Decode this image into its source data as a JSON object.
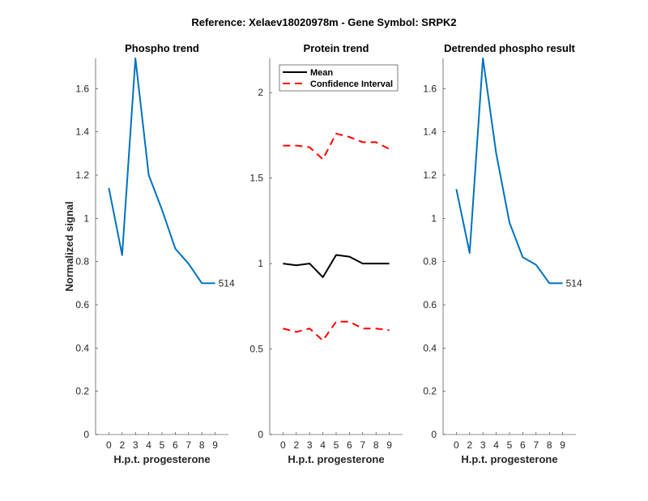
{
  "title": "Reference:  Xelaev18020978m - Gene Symbol:  SRPK2",
  "chart_data": [
    {
      "type": "line",
      "title": "Phospho trend",
      "xlabel": "H.p.t. progesterone",
      "ylabel": "Normalized signal",
      "categories": [
        "0",
        "2",
        "3",
        "4",
        "5",
        "6",
        "7",
        "8",
        "9"
      ],
      "ylim": [
        0,
        1.74
      ],
      "yticks": [
        "0",
        "0.2",
        "0.4",
        "0.6",
        "0.8",
        "1",
        "1.2",
        "1.4",
        "1.6"
      ],
      "series": [
        {
          "name": "514",
          "color": "#0072BD",
          "values": [
            1.14,
            0.83,
            1.74,
            1.2,
            1.04,
            0.86,
            0.79,
            0.7,
            0.7
          ]
        }
      ],
      "end_label": "514"
    },
    {
      "type": "line",
      "title": "Protein trend",
      "xlabel": "H.p.t. progesterone",
      "ylabel": "",
      "categories": [
        "0",
        "2",
        "3",
        "4",
        "5",
        "6",
        "7",
        "8",
        "9"
      ],
      "ylim": [
        0,
        2.2
      ],
      "yticks": [
        "0",
        "0.5",
        "1",
        "1.5",
        "2"
      ],
      "legend": {
        "placement": "top",
        "entries": [
          "Mean",
          "Confidence Interval"
        ]
      },
      "series": [
        {
          "name": "Mean",
          "color": "#000000",
          "style": "solid",
          "values": [
            1.0,
            0.99,
            1.0,
            0.92,
            1.05,
            1.04,
            1.0,
            1.0,
            1.0
          ]
        },
        {
          "name": "Confidence Interval",
          "color": "#FF0000",
          "style": "dashed",
          "values": [
            1.69,
            1.69,
            1.68,
            1.61,
            1.76,
            1.74,
            1.71,
            1.71,
            1.67
          ]
        },
        {
          "name": "Confidence Interval",
          "color": "#FF0000",
          "style": "dashed",
          "values": [
            0.62,
            0.6,
            0.62,
            0.55,
            0.66,
            0.66,
            0.62,
            0.62,
            0.61
          ]
        }
      ]
    },
    {
      "type": "line",
      "title": "Detrended phospho result",
      "xlabel": "H.p.t. progesterone",
      "ylabel": "",
      "categories": [
        "0",
        "2",
        "3",
        "4",
        "5",
        "6",
        "7",
        "8",
        "9"
      ],
      "ylim": [
        0,
        1.74
      ],
      "yticks": [
        "0",
        "0.2",
        "0.4",
        "0.6",
        "0.8",
        "1",
        "1.2",
        "1.4",
        "1.6"
      ],
      "series": [
        {
          "name": "514",
          "color": "#0072BD",
          "values": [
            1.135,
            0.84,
            1.74,
            1.3,
            0.98,
            0.82,
            0.785,
            0.7,
            0.7
          ]
        }
      ],
      "end_label": "514"
    }
  ]
}
